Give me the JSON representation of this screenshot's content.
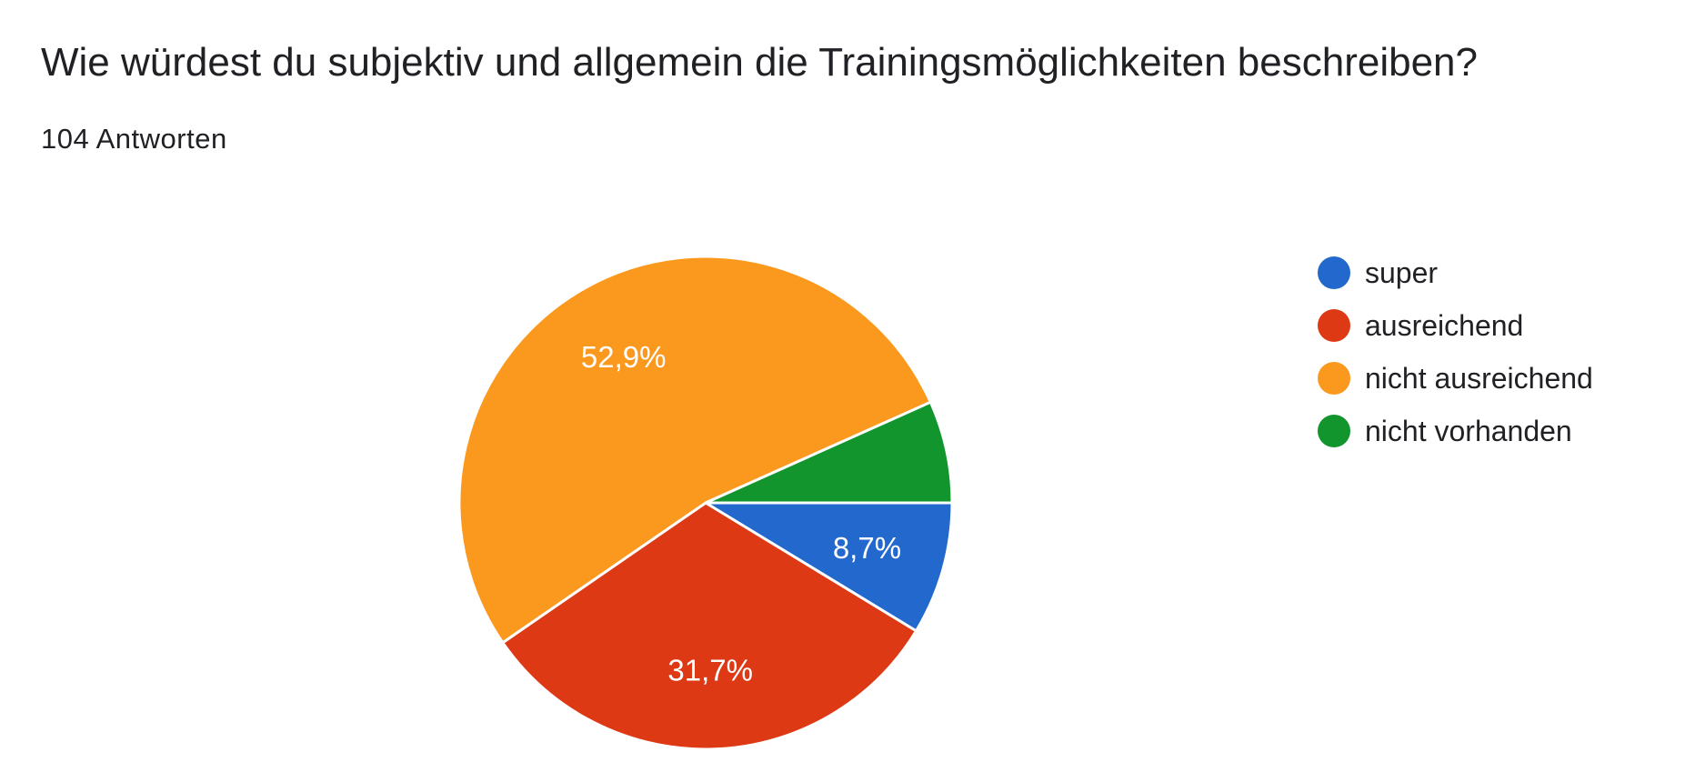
{
  "header": {
    "title": "Wie würdest du subjektiv und allgemein die Trainingsmöglichkeiten beschreiben?",
    "response_count": "104 Antworten"
  },
  "chart_data": {
    "type": "pie",
    "title": "Wie würdest du subjektiv und allgemein die Trainingsmöglichkeiten beschreiben?",
    "total_responses": 104,
    "legend_position": "right",
    "slices": [
      {
        "label": "super",
        "value": 8.7,
        "display": "8,7%",
        "color": "#2369cd"
      },
      {
        "label": "ausreichend",
        "value": 31.7,
        "display": "31,7%",
        "color": "#dd3915"
      },
      {
        "label": "nicht ausreichend",
        "value": 52.9,
        "display": "52,9%",
        "color": "#fb991f"
      },
      {
        "label": "nicht vorhanden",
        "value": 6.7,
        "display": "",
        "color": "#12952d"
      }
    ]
  }
}
